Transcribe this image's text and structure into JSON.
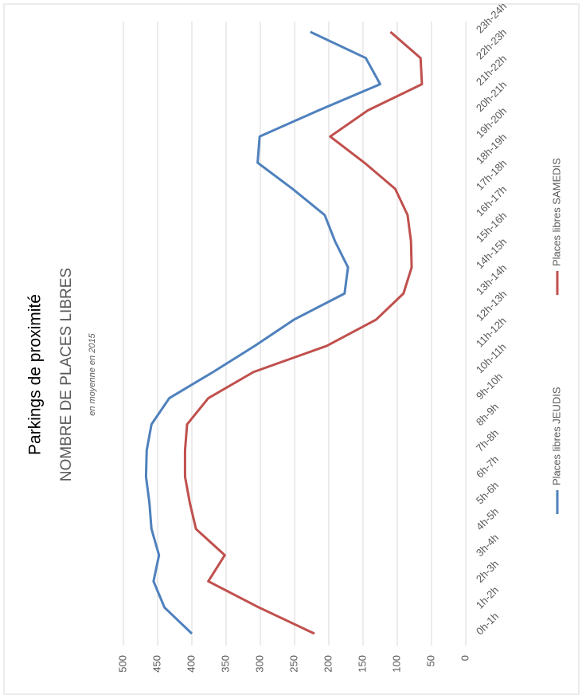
{
  "chart_data": {
    "type": "line",
    "title": "Parkings de proximité",
    "subtitle": "NOMBRE DE PLACES LIBRES",
    "note": "en moyenne en 2015",
    "categories": [
      "0h-1h",
      "1h-2h",
      "2h-3h",
      "3h-4h",
      "4h-5h",
      "5h-6h",
      "6h-7h",
      "7h-8h",
      "8h-9h",
      "9h-10h",
      "10h-11h",
      "11h-12h",
      "12h-13h",
      "13h-14h",
      "14h-15h",
      "15h-16h",
      "16h-17h",
      "17h-18h",
      "18h-19h",
      "19h-20h",
      "20h-21h",
      "21h-22h",
      "22h-23h",
      "23h-24h"
    ],
    "series": [
      {
        "name": "Places libres JEUDIS",
        "color": "#4f81bd",
        "values": [
          400,
          440,
          456,
          448,
          459,
          462,
          467,
          466,
          459,
          433,
          369,
          308,
          251,
          177,
          172,
          191,
          206,
          253,
          304,
          301,
          215,
          125,
          146,
          227
        ]
      },
      {
        "name": "Places libres SAMEDIS",
        "color": "#c0504d",
        "values": [
          221,
          302,
          376,
          352,
          394,
          403,
          410,
          410,
          407,
          376,
          310,
          203,
          131,
          91,
          79,
          80,
          85,
          103,
          148,
          198,
          143,
          64,
          66,
          110
        ]
      }
    ],
    "ylim": [
      0,
      500
    ],
    "yticks": [
      0,
      50,
      100,
      150,
      200,
      250,
      300,
      350,
      400,
      450,
      500
    ],
    "grid": true,
    "orientation": "rotated"
  }
}
